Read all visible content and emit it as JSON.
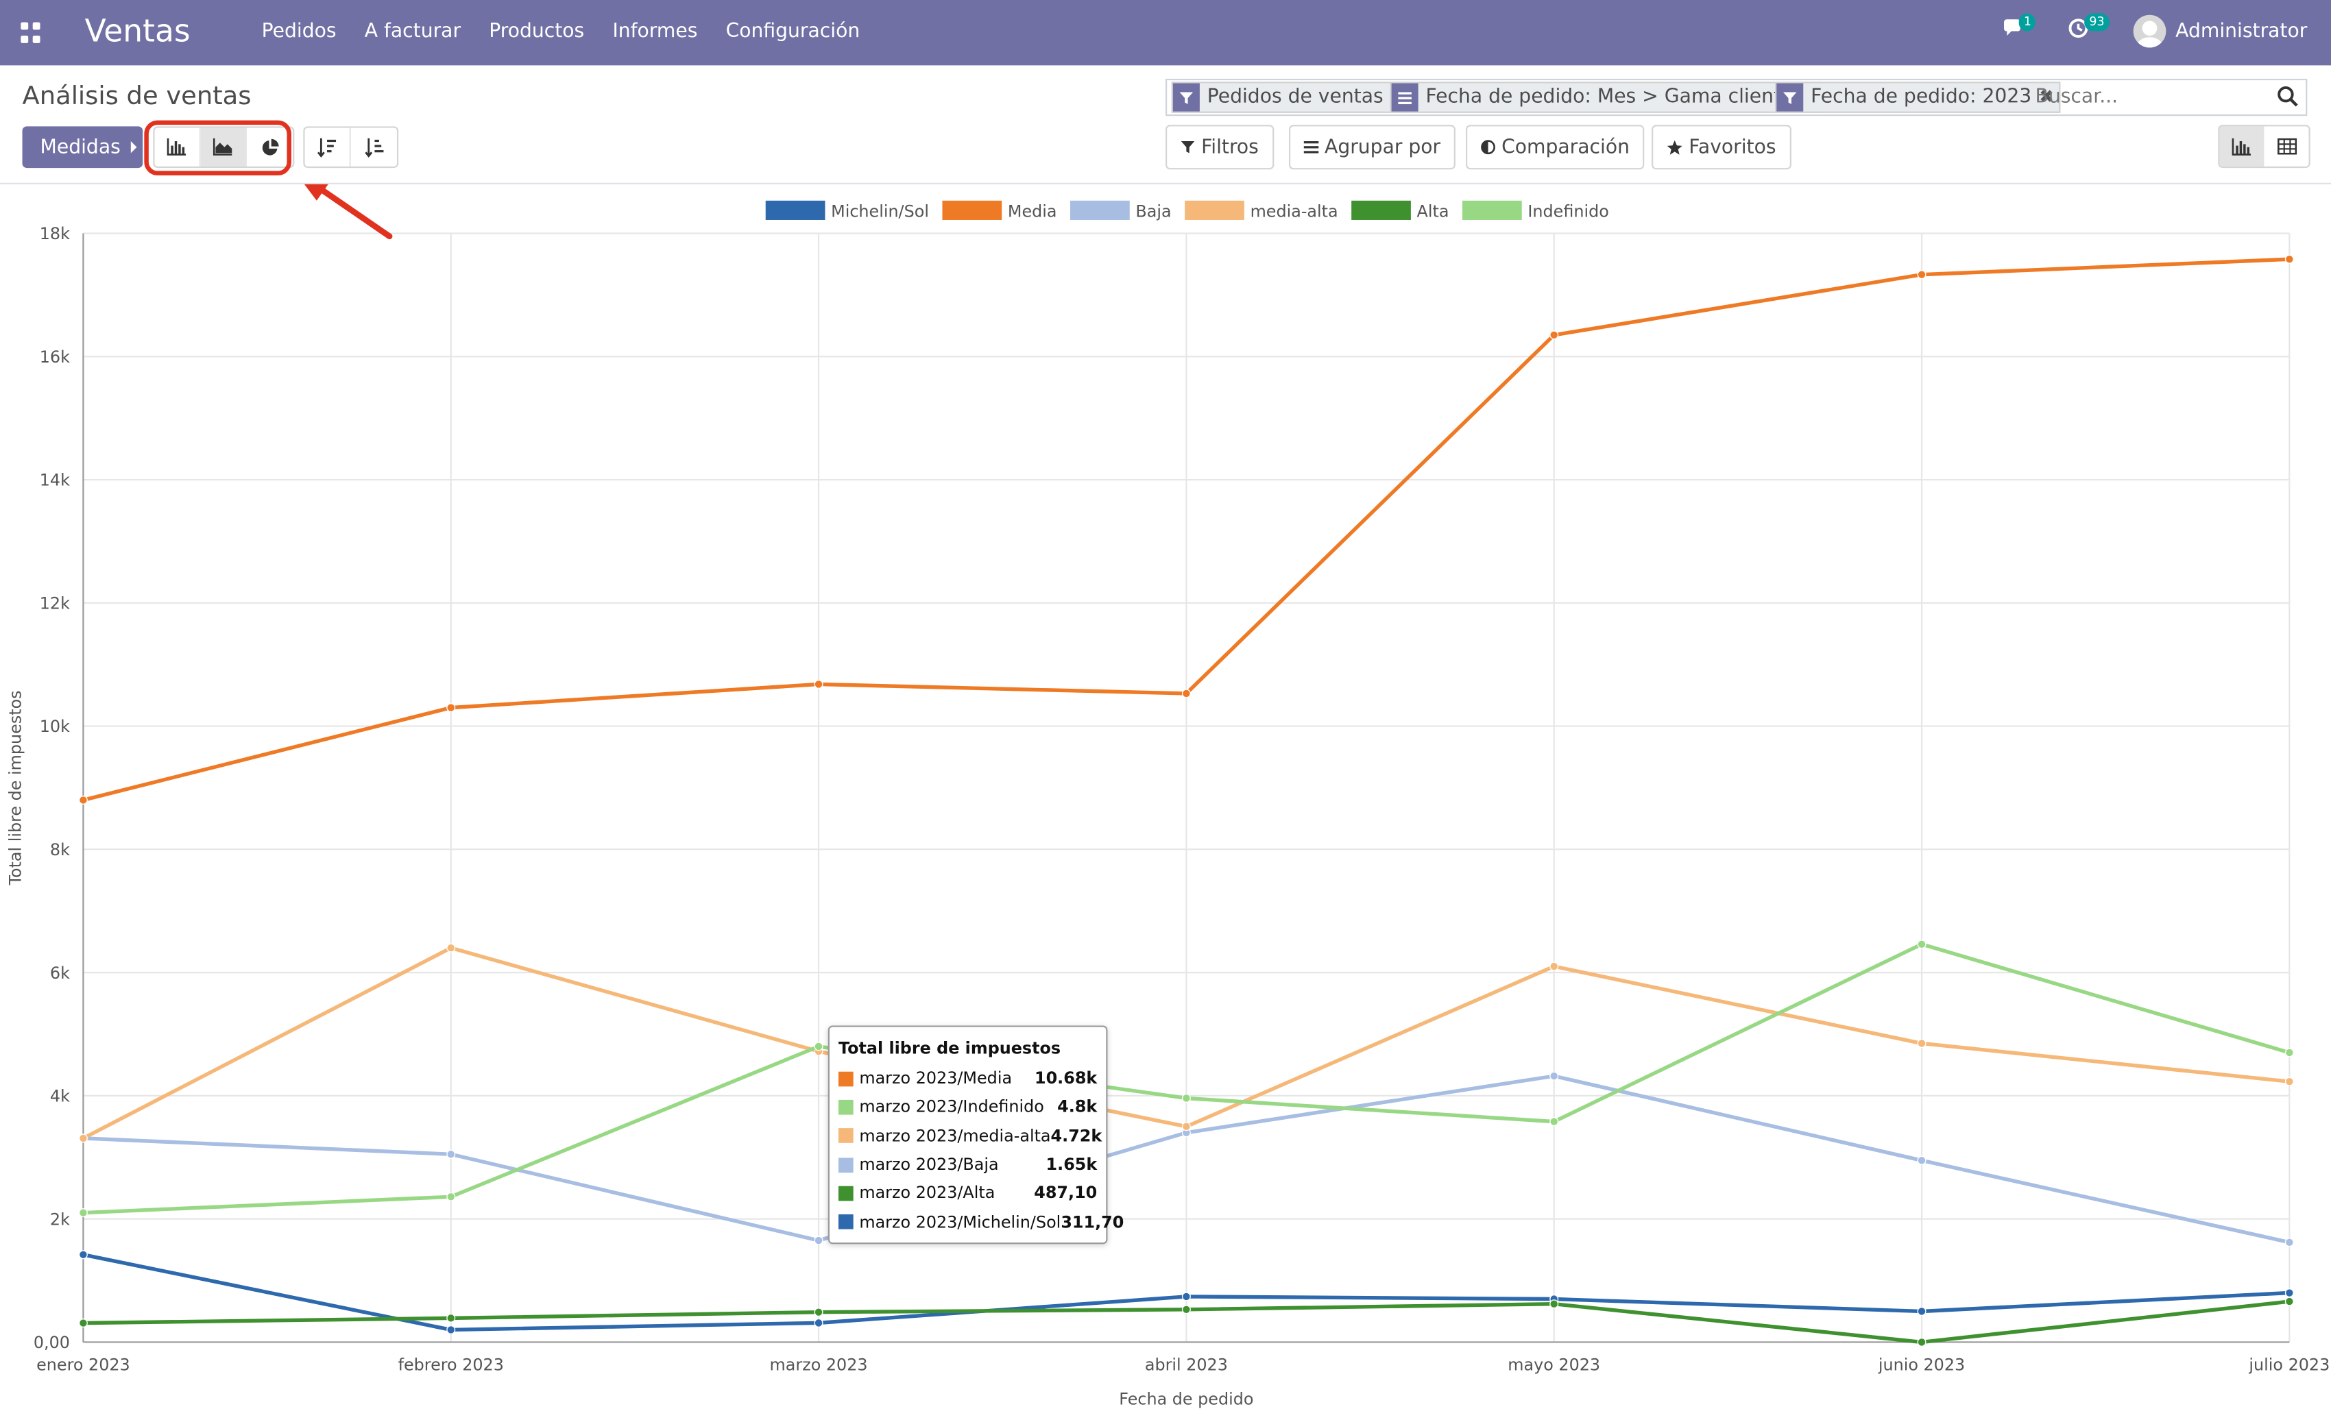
{
  "navbar": {
    "brand": "Ventas",
    "menu": [
      "Pedidos",
      "A facturar",
      "Productos",
      "Informes",
      "Configuración"
    ],
    "messages_count": "1",
    "activities_count": "93",
    "user": "Administrator"
  },
  "control_panel": {
    "title": "Análisis de ventas",
    "measures_label": "Medidas",
    "facets": [
      "Pedidos de ventas",
      "Fecha de pedido: Mes > Gama cliente",
      "Fecha de pedido: 2023"
    ],
    "search_placeholder": "Buscar...",
    "filters_label": "Filtros",
    "groupby_label": "Agrupar por",
    "comparison_label": "Comparación",
    "favorites_label": "Favoritos"
  },
  "colors": {
    "navbar": "#7170a5",
    "highlight": "#e0321f"
  },
  "chart_data": {
    "type": "line",
    "xlabel": "Fecha de pedido",
    "ylabel": "Total libre de impuestos",
    "ylim": [
      0,
      18000
    ],
    "yticks": [
      "0,00",
      "2k",
      "4k",
      "6k",
      "8k",
      "10k",
      "12k",
      "14k",
      "16k",
      "18k"
    ],
    "grid": true,
    "legend_position": "top",
    "categories": [
      "enero 2023",
      "febrero 2023",
      "marzo 2023",
      "abril 2023",
      "mayo 2023",
      "junio 2023",
      "julio 2023"
    ],
    "series": [
      {
        "name": "Michelin/Sol",
        "color": "#2e69ad",
        "values": [
          1420,
          200,
          312,
          740,
          700,
          500,
          800
        ]
      },
      {
        "name": "Media",
        "color": "#ef7a25",
        "values": [
          8800,
          10300,
          10680,
          10530,
          16350,
          17330,
          17580
        ]
      },
      {
        "name": "Baja",
        "color": "#a7bde2",
        "values": [
          3310,
          3050,
          1650,
          3400,
          4320,
          2950,
          1620
        ]
      },
      {
        "name": "media-alta",
        "color": "#f5b878",
        "values": [
          3310,
          6400,
          4720,
          3500,
          6100,
          4850,
          4230
        ]
      },
      {
        "name": "Alta",
        "color": "#3f912f",
        "values": [
          310,
          390,
          487,
          530,
          620,
          0,
          660
        ]
      },
      {
        "name": "Indefinido",
        "color": "#98d885",
        "values": [
          2100,
          2360,
          4800,
          3960,
          3580,
          6460,
          4700
        ]
      }
    ],
    "tooltip": {
      "title": "Total libre de impuestos",
      "rows": [
        {
          "label": "marzo 2023/Media",
          "value": "10.68k",
          "color": "#ef7a25"
        },
        {
          "label": "marzo 2023/Indefinido",
          "value": "4.8k",
          "color": "#98d885"
        },
        {
          "label": "marzo 2023/media-alta",
          "value": "4.72k",
          "color": "#f5b878"
        },
        {
          "label": "marzo 2023/Baja",
          "value": "1.65k",
          "color": "#a7bde2"
        },
        {
          "label": "marzo 2023/Alta",
          "value": "487,10",
          "color": "#3f912f"
        },
        {
          "label": "marzo 2023/Michelin/Sol",
          "value": "311,70",
          "color": "#2e69ad"
        }
      ]
    }
  }
}
